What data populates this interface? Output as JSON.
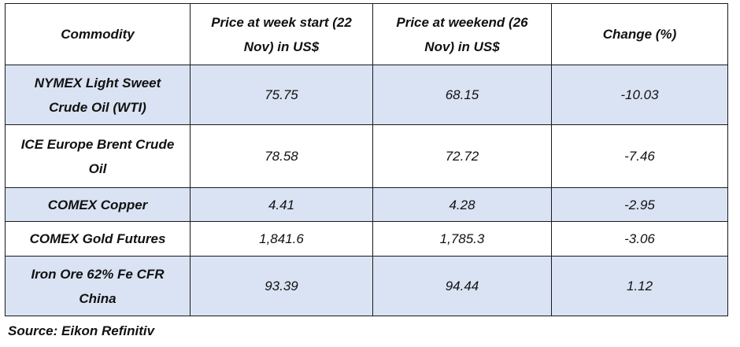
{
  "table": {
    "headers": [
      "Commodity",
      "Price at week start (22 Nov) in US$",
      "Price at weekend (26 Nov) in US$",
      "Change (%)"
    ],
    "rows": [
      {
        "commodity": "NYMEX Light Sweet Crude Oil (WTI)",
        "start": "75.75",
        "weekend": "68.15",
        "change": "-10.03"
      },
      {
        "commodity": "ICE Europe Brent Crude Oil",
        "start": "78.58",
        "weekend": "72.72",
        "change": "-7.46"
      },
      {
        "commodity": "COMEX Copper",
        "start": "4.41",
        "weekend": "4.28",
        "change": "-2.95"
      },
      {
        "commodity": "COMEX Gold Futures",
        "start": "1,841.6",
        "weekend": "1,785.3",
        "change": "-3.06"
      },
      {
        "commodity": "Iron Ore 62% Fe CFR China",
        "start": "93.39",
        "weekend": "94.44",
        "change": "1.12"
      }
    ]
  },
  "source": "Source: Eikon Refinitiv",
  "colors": {
    "row_shade": "#dae3f3",
    "row_plain": "#ffffff",
    "border": "#1a1a1a"
  }
}
